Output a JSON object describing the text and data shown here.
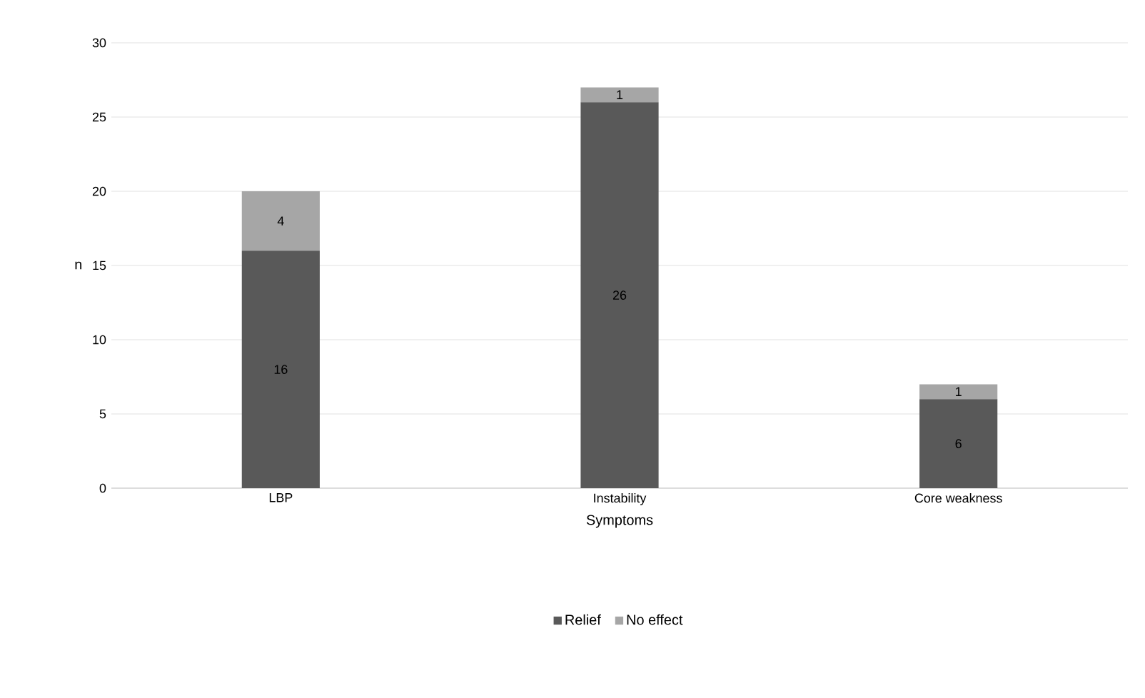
{
  "chart_data": {
    "type": "bar",
    "stacked": true,
    "xlabel": "Symptoms",
    "ylabel": "n",
    "categories": [
      "LBP",
      "Instability",
      "Core weakness"
    ],
    "series": [
      {
        "name": "Relief",
        "color": "#595959",
        "values": [
          16,
          26,
          6
        ]
      },
      {
        "name": "No effect",
        "color": "#a6a6a6",
        "values": [
          4,
          1,
          1
        ]
      }
    ],
    "ylim": [
      0,
      30
    ],
    "yticks": [
      0,
      5,
      10,
      15,
      20,
      25,
      30
    ],
    "grid": "y",
    "legend": "bottom",
    "data_labels": true
  }
}
